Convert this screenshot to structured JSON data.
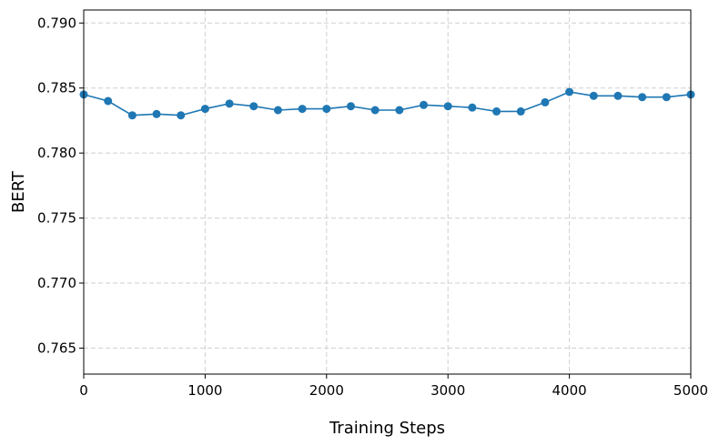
{
  "chart_data": {
    "type": "line",
    "title": "",
    "xlabel": "Training Steps",
    "ylabel": "BERT",
    "xlim": [
      0,
      5000
    ],
    "ylim": [
      0.763,
      0.791
    ],
    "x_ticks": [
      0,
      1000,
      2000,
      3000,
      4000,
      5000
    ],
    "x_tick_labels": [
      "0",
      "1000",
      "2000",
      "3000",
      "4000",
      "5000"
    ],
    "y_ticks": [
      0.765,
      0.77,
      0.775,
      0.78,
      0.785,
      0.79
    ],
    "y_tick_labels": [
      "0.765",
      "0.770",
      "0.775",
      "0.780",
      "0.785",
      "0.790"
    ],
    "grid": true,
    "series": [
      {
        "color": "#1f77b4",
        "marker": "circle",
        "x": [
          0,
          200,
          400,
          600,
          800,
          1000,
          1200,
          1400,
          1600,
          1800,
          2000,
          2200,
          2400,
          2600,
          2800,
          3000,
          3200,
          3400,
          3600,
          3800,
          4000,
          4200,
          4400,
          4600,
          4800,
          5000
        ],
        "y": [
          0.7845,
          0.784,
          0.7829,
          0.783,
          0.7829,
          0.7834,
          0.7838,
          0.7836,
          0.7833,
          0.7834,
          0.7834,
          0.7836,
          0.7833,
          0.7833,
          0.7837,
          0.7836,
          0.7835,
          0.7832,
          0.7832,
          0.7839,
          0.7847,
          0.7844,
          0.7844,
          0.7843,
          0.7843,
          0.7845
        ]
      }
    ]
  }
}
